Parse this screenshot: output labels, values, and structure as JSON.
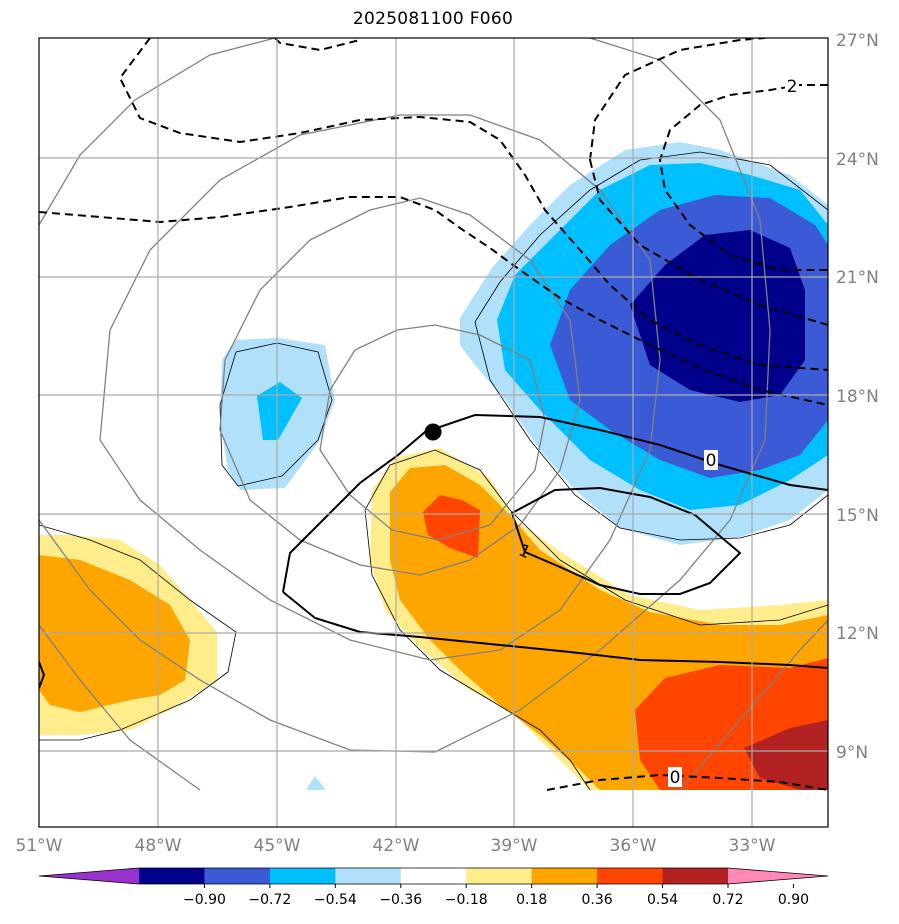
{
  "title": "2025081100 F060",
  "chart_data": {
    "type": "map",
    "projection": "regional lat/lon",
    "extent": {
      "lon": [
        -51,
        -30.5
      ],
      "lat": [
        7.5,
        27
      ]
    },
    "lon_ticks": [
      "51°W",
      "48°W",
      "45°W",
      "42°W",
      "39°W",
      "36°W",
      "33°W"
    ],
    "lat_ticks": [
      "27°N",
      "24°N",
      "21°N",
      "18°N",
      "15°N",
      "12°N",
      "9°N"
    ],
    "grid": true,
    "colorbar": {
      "orientation": "horizontal",
      "extend": "both",
      "levels": [
        "-0.90",
        "-0.72",
        "-0.54",
        "-0.36",
        "-0.18",
        "0.18",
        "0.36",
        "0.54",
        "0.72",
        "0.90"
      ],
      "colors": [
        "#9932cc",
        "#00008b",
        "#3b5bd6",
        "#00bfff",
        "#b0e0fa",
        "#ffffff",
        "#ffec8b",
        "#ffa500",
        "#ff4500",
        "#b22222",
        "#ff88b8"
      ]
    },
    "contour_labels": [
      {
        "text": "2",
        "lon": -31.9,
        "lat": 25.8
      },
      {
        "text": "0",
        "lon": -33.1,
        "lat": 16.4
      },
      {
        "text": "1",
        "lon": -38.7,
        "lat": 14.1
      },
      {
        "text": "0",
        "lon": -35.3,
        "lat": 8.5
      }
    ],
    "storm_center": {
      "lon": -41.1,
      "lat": 17.1
    }
  }
}
